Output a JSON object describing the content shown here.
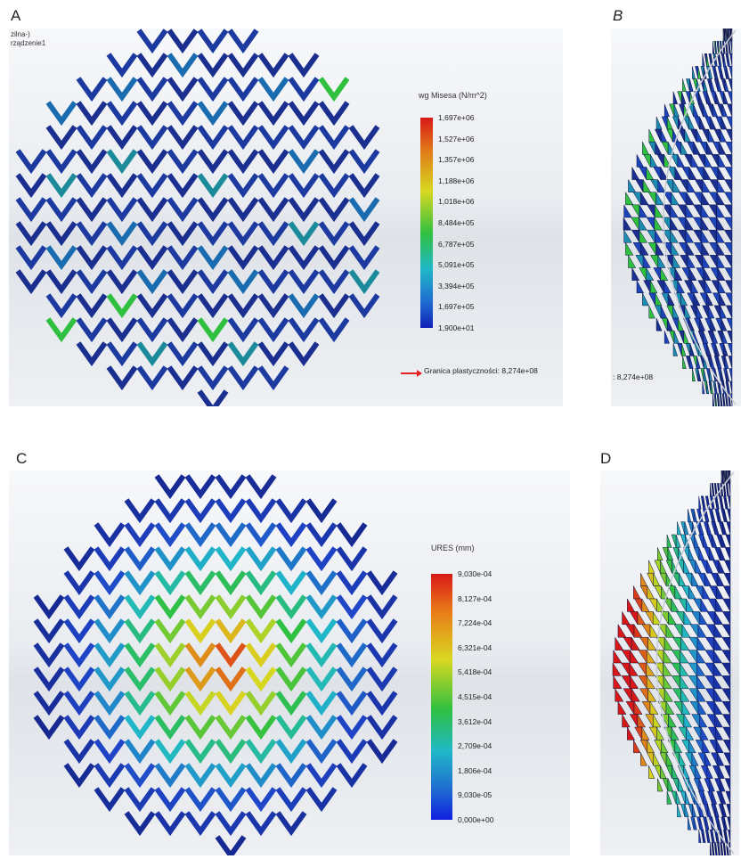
{
  "labels": {
    "a": "A",
    "b": "B",
    "c": "C",
    "d": "D"
  },
  "panelA": {
    "corner_lines": [
      "zilna-)",
      "rządzenie1"
    ],
    "colorbar_title": "wg Misesa (N/m^2)",
    "ticks": [
      "1,697e+06",
      "1,527e+06",
      "1,357e+06",
      "1,188e+06",
      "1,018e+06",
      "8,484e+05",
      "6,787e+05",
      "5,091e+05",
      "3,394e+05",
      "1,697e+05",
      "1,900e+01"
    ],
    "yield_text": "Granica plastyczności: 8,274e+08"
  },
  "panelB": {
    "yield_text": ": 8,274e+08"
  },
  "panelC": {
    "colorbar_title": "URES (mm)",
    "ticks": [
      "9,030e-04",
      "8,127e-04",
      "7,224e-04",
      "6,321e-04",
      "5,418e-04",
      "4,515e-04",
      "3,612e-04",
      "2,709e-04",
      "1,806e-04",
      "9,030e-05",
      "0,000e+00"
    ]
  },
  "colors": {
    "dark_blue": "#16268c",
    "blue": "#1f45c8",
    "cyan": "#20b8c8",
    "green": "#30c040",
    "yellow": "#d8d820",
    "orange": "#e07818",
    "red": "#d81818"
  }
}
